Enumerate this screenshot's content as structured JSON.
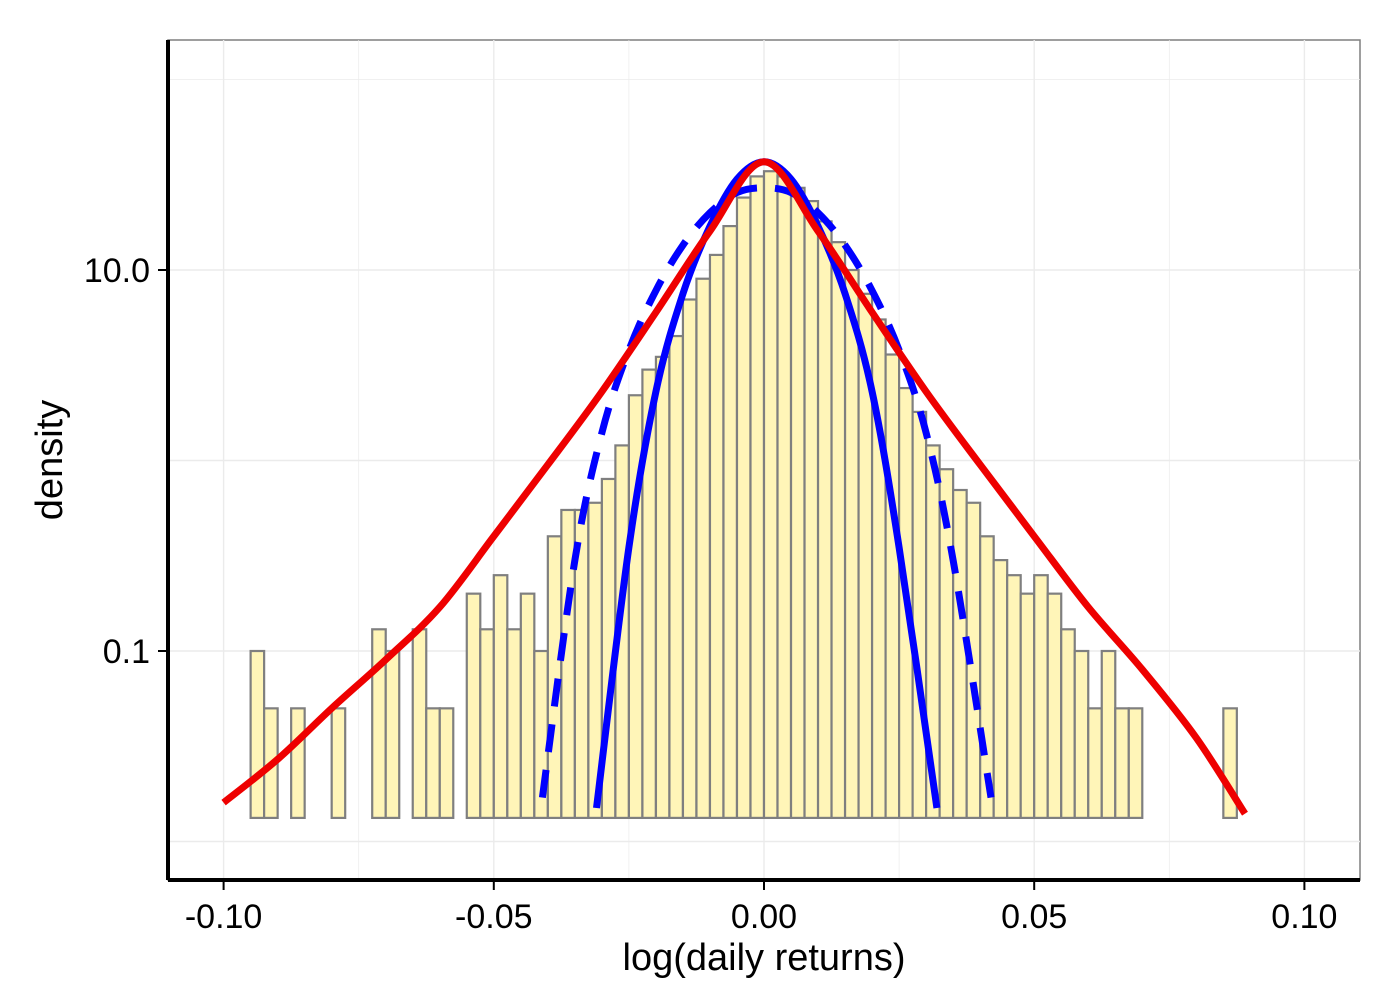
{
  "chart_data": {
    "type": "histogram",
    "xlabel": "log(daily returns)",
    "ylabel": "density",
    "y_scale": "log10",
    "xlim": [
      -0.11,
      0.11
    ],
    "ylim": [
      0.01,
      60
    ],
    "x_ticks": [
      {
        "value": -0.1,
        "label": "-0.10"
      },
      {
        "value": -0.05,
        "label": "-0.05"
      },
      {
        "value": 0.0,
        "label": "0.00"
      },
      {
        "value": 0.05,
        "label": "0.05"
      },
      {
        "value": 0.1,
        "label": "0.10"
      }
    ],
    "y_ticks": [
      {
        "value": 10,
        "label": "10.0"
      },
      {
        "value": 0.1,
        "label": "0.1"
      }
    ],
    "grid": true,
    "legend": "none",
    "colors": {
      "bar_fill": "#fff5b8",
      "bar_stroke": "#7f7f7f",
      "normal_curve": "#0000ff",
      "mixture_curve": "#0000ff",
      "heavy_tail_curve": "#ee0000",
      "grid": "#ebebeb"
    },
    "histogram": {
      "bin_width": 0.0025,
      "baseline": 0.0133,
      "bins": [
        {
          "x0": -0.095,
          "density": 0.1
        },
        {
          "x0": -0.0925,
          "density": 0.05
        },
        {
          "x0": -0.0875,
          "density": 0.05
        },
        {
          "x0": -0.08,
          "density": 0.05
        },
        {
          "x0": -0.0725,
          "density": 0.13
        },
        {
          "x0": -0.07,
          "density": 0.1
        },
        {
          "x0": -0.065,
          "density": 0.13
        },
        {
          "x0": -0.0625,
          "density": 0.05
        },
        {
          "x0": -0.06,
          "density": 0.05
        },
        {
          "x0": -0.055,
          "density": 0.2
        },
        {
          "x0": -0.0525,
          "density": 0.13
        },
        {
          "x0": -0.05,
          "density": 0.25
        },
        {
          "x0": -0.0475,
          "density": 0.13
        },
        {
          "x0": -0.045,
          "density": 0.2
        },
        {
          "x0": -0.0425,
          "density": 0.1
        },
        {
          "x0": -0.04,
          "density": 0.4
        },
        {
          "x0": -0.0375,
          "density": 0.55
        },
        {
          "x0": -0.035,
          "density": 0.55
        },
        {
          "x0": -0.0325,
          "density": 0.6
        },
        {
          "x0": -0.03,
          "density": 0.8
        },
        {
          "x0": -0.0275,
          "density": 1.2
        },
        {
          "x0": -0.025,
          "density": 2.2
        },
        {
          "x0": -0.0225,
          "density": 3.0
        },
        {
          "x0": -0.02,
          "density": 3.5
        },
        {
          "x0": -0.0175,
          "density": 4.5
        },
        {
          "x0": -0.015,
          "density": 7.0
        },
        {
          "x0": -0.0125,
          "density": 9.0
        },
        {
          "x0": -0.01,
          "density": 12.0
        },
        {
          "x0": -0.0075,
          "density": 17.0
        },
        {
          "x0": -0.005,
          "density": 24.0
        },
        {
          "x0": -0.0025,
          "density": 31.0
        },
        {
          "x0": 0.0,
          "density": 33.0
        },
        {
          "x0": 0.0025,
          "density": 31.0
        },
        {
          "x0": 0.005,
          "density": 27.0
        },
        {
          "x0": 0.0075,
          "density": 23.0
        },
        {
          "x0": 0.01,
          "density": 18.0
        },
        {
          "x0": 0.0125,
          "density": 14.0
        },
        {
          "x0": 0.015,
          "density": 10.0
        },
        {
          "x0": 0.0175,
          "density": 7.5
        },
        {
          "x0": 0.02,
          "density": 5.5
        },
        {
          "x0": 0.0225,
          "density": 3.6
        },
        {
          "x0": 0.025,
          "density": 2.4
        },
        {
          "x0": 0.0275,
          "density": 1.8
        },
        {
          "x0": 0.03,
          "density": 1.2
        },
        {
          "x0": 0.0325,
          "density": 0.9
        },
        {
          "x0": 0.035,
          "density": 0.7
        },
        {
          "x0": 0.0375,
          "density": 0.6
        },
        {
          "x0": 0.04,
          "density": 0.4
        },
        {
          "x0": 0.0425,
          "density": 0.3
        },
        {
          "x0": 0.045,
          "density": 0.25
        },
        {
          "x0": 0.0475,
          "density": 0.2
        },
        {
          "x0": 0.05,
          "density": 0.25
        },
        {
          "x0": 0.0525,
          "density": 0.2
        },
        {
          "x0": 0.055,
          "density": 0.13
        },
        {
          "x0": 0.0575,
          "density": 0.1
        },
        {
          "x0": 0.06,
          "density": 0.05
        },
        {
          "x0": 0.0625,
          "density": 0.1
        },
        {
          "x0": 0.065,
          "density": 0.05
        },
        {
          "x0": 0.0675,
          "density": 0.05
        },
        {
          "x0": 0.085,
          "density": 0.05
        }
      ]
    },
    "curves": [
      {
        "style": "solid",
        "color": "#0000ff",
        "x_range": [
          -0.031,
          0.032
        ],
        "points": [
          [
            -0.031,
            0.015
          ],
          [
            -0.025,
            0.35
          ],
          [
            -0.02,
            2.3
          ],
          [
            -0.015,
            7.5
          ],
          [
            -0.01,
            17
          ],
          [
            -0.005,
            30
          ],
          [
            0.0,
            37
          ],
          [
            0.005,
            30
          ],
          [
            0.01,
            17
          ],
          [
            0.015,
            7.5
          ],
          [
            0.02,
            2.3
          ],
          [
            0.025,
            0.35
          ],
          [
            0.032,
            0.015
          ]
        ]
      },
      {
        "style": "dashed",
        "color": "#0000ff",
        "x_range": [
          -0.041,
          0.042
        ],
        "points": [
          [
            -0.041,
            0.017
          ],
          [
            -0.035,
            0.3
          ],
          [
            -0.03,
            1.4
          ],
          [
            -0.025,
            3.8
          ],
          [
            -0.02,
            7.8
          ],
          [
            -0.015,
            13.5
          ],
          [
            -0.01,
            20
          ],
          [
            -0.005,
            25.5
          ],
          [
            0.0,
            27
          ],
          [
            0.005,
            25.5
          ],
          [
            0.01,
            20
          ],
          [
            0.015,
            13.5
          ],
          [
            0.02,
            7.8
          ],
          [
            0.025,
            3.8
          ],
          [
            0.03,
            1.4
          ],
          [
            0.035,
            0.3
          ],
          [
            0.042,
            0.017
          ]
        ]
      },
      {
        "style": "solid",
        "color": "#ee0000",
        "x_range": [
          -0.1,
          0.089
        ],
        "points": [
          [
            -0.1,
            0.016
          ],
          [
            -0.09,
            0.027
          ],
          [
            -0.08,
            0.05
          ],
          [
            -0.07,
            0.09
          ],
          [
            -0.06,
            0.17
          ],
          [
            -0.05,
            0.4
          ],
          [
            -0.04,
            0.95
          ],
          [
            -0.03,
            2.3
          ],
          [
            -0.02,
            6.0
          ],
          [
            -0.01,
            16
          ],
          [
            0.0,
            37
          ],
          [
            0.01,
            16
          ],
          [
            0.02,
            6.0
          ],
          [
            0.03,
            2.3
          ],
          [
            0.04,
            0.95
          ],
          [
            0.05,
            0.4
          ],
          [
            0.06,
            0.17
          ],
          [
            0.07,
            0.08
          ],
          [
            0.08,
            0.035
          ],
          [
            0.089,
            0.014
          ]
        ]
      }
    ]
  }
}
